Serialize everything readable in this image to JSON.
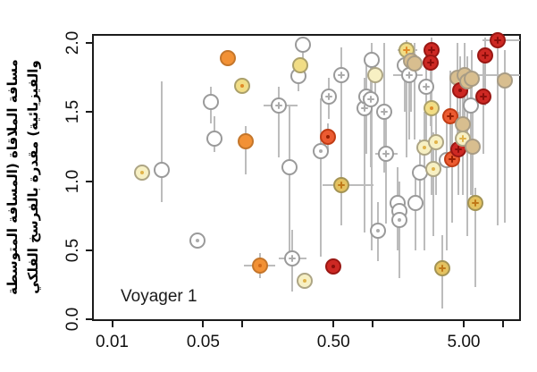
{
  "figure": {
    "annotation": "Voyager 1"
  },
  "chart_data": {
    "type": "scatter",
    "x_scale": "log",
    "title": "",
    "xlabel": "",
    "ylabel_line1": "مسافة الملاقاة (المسافة المتوسطة",
    "ylabel_line2": "والفيزيائية) مقدرة بالفرسخ الفلكي",
    "annotation": "Voyager 1",
    "grid": false,
    "legend": "none",
    "xlim": [
      0.007,
      13.7
    ],
    "ylim": [
      -0.02,
      2.08
    ],
    "x_ticks": [
      {
        "v": 0.01,
        "label": "0.01"
      },
      {
        "v": 0.05,
        "label": "0.05"
      },
      {
        "v": 0.1,
        "label": ""
      },
      {
        "v": 0.5,
        "label": "0.50"
      },
      {
        "v": 1.0,
        "label": ""
      },
      {
        "v": 5.0,
        "label": "5.00"
      },
      {
        "v": 10.0,
        "label": ""
      }
    ],
    "y_ticks": [
      {
        "v": 0.0,
        "label": "0.0"
      },
      {
        "v": 0.5,
        "label": "0.5"
      },
      {
        "v": 1.0,
        "label": "1.0"
      },
      {
        "v": 1.5,
        "label": "1.5"
      },
      {
        "v": 2.0,
        "label": "2.0"
      }
    ],
    "color_categories": {
      "open": {
        "fill": "#ffffff",
        "stroke": "#9a9a9a",
        "mark": "#ababab"
      },
      "pale": {
        "fill": "#f7f0c3",
        "stroke": "#ada584",
        "mark": "#e0b34a"
      },
      "yellow": {
        "fill": "#f1dd85",
        "stroke": "#aba06a",
        "mark": "#e08a28"
      },
      "gold": {
        "fill": "#e4c260",
        "stroke": "#a39354",
        "mark": "#c07818"
      },
      "tan": {
        "fill": "#d8be8f",
        "stroke": "#a89c85",
        "mark": "#b89858"
      },
      "orange": {
        "fill": "#f29135",
        "stroke": "#c4762b",
        "mark": "#d06818"
      },
      "redorange": {
        "fill": "#ec5b31",
        "stroke": "#c03c14",
        "mark": "#951e00"
      },
      "red": {
        "fill": "#cd2823",
        "stroke": "#991713",
        "mark": "#8b0e0b"
      }
    },
    "error_bar_color": "#bcbcbc",
    "points": [
      {
        "x": 0.017,
        "y": 1.06,
        "c": "pale",
        "m": "dot"
      },
      {
        "x": 0.024,
        "y": 1.08,
        "c": "open",
        "el": 0.85,
        "eh": 1.72
      },
      {
        "x": 0.045,
        "y": 0.57,
        "c": "open",
        "m": "dot"
      },
      {
        "x": 0.057,
        "y": 1.57,
        "c": "open",
        "el": 1.42,
        "eh": 1.68
      },
      {
        "x": 0.061,
        "y": 1.31,
        "c": "open",
        "el": 1.21,
        "eh": 1.47
      },
      {
        "x": 0.077,
        "y": 1.89,
        "c": "orange"
      },
      {
        "x": 0.1,
        "y": 1.69,
        "c": "yellow",
        "m": "dot"
      },
      {
        "x": 0.106,
        "y": 1.29,
        "c": "orange",
        "el": 1.05,
        "eh": 1.4
      },
      {
        "x": 0.137,
        "y": 0.39,
        "c": "orange",
        "m": "dot",
        "el": 0.3,
        "eh": 0.48,
        "xl": 0.103,
        "xh": 0.178
      },
      {
        "x": 0.19,
        "y": 1.55,
        "c": "open",
        "m": "plus",
        "el": 1.17,
        "eh": 1.68,
        "xl": 0.146,
        "xh": 0.266
      },
      {
        "x": 0.23,
        "y": 1.1,
        "c": "open",
        "el": 0.45,
        "eh": 1.55
      },
      {
        "x": 0.24,
        "y": 0.44,
        "c": "open",
        "m": "plus",
        "el": 0.2,
        "eh": 0.65,
        "xl": 0.19,
        "xh": 0.31
      },
      {
        "x": 0.27,
        "y": 1.76,
        "c": "open",
        "el": 1.65,
        "eh": 1.88
      },
      {
        "x": 0.28,
        "y": 1.84,
        "c": "yellow"
      },
      {
        "x": 0.29,
        "y": 1.99,
        "c": "open",
        "el": 1.75,
        "eh": 2.02
      },
      {
        "x": 0.3,
        "y": 0.28,
        "c": "pale",
        "m": "dot"
      },
      {
        "x": 0.4,
        "y": 1.22,
        "c": "open",
        "m": "dot",
        "el": 0.45,
        "eh": 1.6
      },
      {
        "x": 0.45,
        "y": 1.32,
        "c": "redorange",
        "m": "dot",
        "el": 1.21,
        "eh": 1.42
      },
      {
        "x": 0.46,
        "y": 1.61,
        "c": "open",
        "m": "plus",
        "el": 1.45,
        "eh": 1.75
      },
      {
        "x": 0.5,
        "y": 0.38,
        "c": "red",
        "m": "dot"
      },
      {
        "x": 0.575,
        "y": 1.77,
        "c": "open",
        "m": "plus",
        "el": 0.95,
        "eh": 1.97
      },
      {
        "x": 0.575,
        "y": 0.97,
        "c": "gold",
        "m": "plus",
        "el": 0.68,
        "eh": 1.09,
        "xl": 0.41,
        "xh": 1.02
      },
      {
        "x": 0.86,
        "y": 1.53,
        "c": "open",
        "m": "plus",
        "el": 0.63,
        "eh": 1.75
      },
      {
        "x": 0.89,
        "y": 1.61,
        "c": "open",
        "m": "plus",
        "el": 1.2,
        "eh": 1.9
      },
      {
        "x": 0.97,
        "y": 1.59,
        "c": "open",
        "m": "plus",
        "el": 1.1,
        "eh": 1.85
      },
      {
        "x": 0.99,
        "y": 1.88,
        "c": "open",
        "el": 0.5,
        "eh": 2.0
      },
      {
        "x": 1.05,
        "y": 1.77,
        "c": "pale",
        "el": 1.55,
        "eh": 1.85
      },
      {
        "x": 1.1,
        "y": 0.64,
        "c": "open",
        "m": "dot",
        "el": 0.42,
        "eh": 0.85
      },
      {
        "x": 1.27,
        "y": 1.2,
        "c": "open",
        "m": "plus",
        "el": 0.69,
        "eh": 1.51,
        "xl": 1.05,
        "xh": 1.55
      },
      {
        "x": 1.22,
        "y": 1.5,
        "c": "open",
        "m": "plus",
        "el": 1.06,
        "eh": 2.0
      },
      {
        "x": 1.55,
        "y": 0.84,
        "c": "open",
        "el": 0.5,
        "eh": 1.1
      },
      {
        "x": 1.6,
        "y": 0.78,
        "c": "open",
        "el": 0.3,
        "eh": 1.0
      },
      {
        "x": 1.6,
        "y": 0.72,
        "c": "open",
        "m": "dot",
        "el": 0.4,
        "eh": 0.95
      },
      {
        "x": 1.77,
        "y": 1.84,
        "c": "open",
        "el": 1.5,
        "eh": 2.0
      },
      {
        "x": 1.82,
        "y": 1.95,
        "c": "yellow",
        "m": "plus",
        "el": 1.17,
        "eh": 2.02,
        "xl": 1.56,
        "xh": 2.2
      },
      {
        "x": 1.97,
        "y": 1.87,
        "c": "tan",
        "el": 1.5,
        "eh": 2.0
      },
      {
        "x": 1.9,
        "y": 1.77,
        "c": "open",
        "m": "plus",
        "el": 1.3,
        "eh": 2.0,
        "xl": 1.44,
        "xh": 2.4
      },
      {
        "x": 2.09,
        "y": 1.85,
        "c": "tan",
        "el": 1.3,
        "eh": 2.0
      },
      {
        "x": 2.13,
        "y": 0.84,
        "c": "open",
        "el": 0.5,
        "eh": 1.1
      },
      {
        "x": 2.32,
        "y": 1.06,
        "c": "open",
        "el": 0.8,
        "eh": 1.3
      },
      {
        "x": 2.49,
        "y": 1.24,
        "c": "pale",
        "m": "dot",
        "el": 0.5,
        "eh": 1.5
      },
      {
        "x": 2.57,
        "y": 1.68,
        "c": "open",
        "m": "plus",
        "el": 1.2,
        "eh": 1.95
      },
      {
        "x": 2.83,
        "y": 1.95,
        "c": "red",
        "m": "plus",
        "el": 1.6,
        "eh": 2.04
      },
      {
        "x": 2.79,
        "y": 1.86,
        "c": "red",
        "m": "plus",
        "el": 1.4,
        "eh": 2.0
      },
      {
        "x": 2.83,
        "y": 1.53,
        "c": "yellow",
        "m": "dot",
        "el": 0.9,
        "eh": 1.8
      },
      {
        "x": 2.92,
        "y": 1.09,
        "c": "pale",
        "m": "dot",
        "el": 0.6,
        "eh": 1.35
      },
      {
        "x": 3.05,
        "y": 1.28,
        "c": "pale",
        "m": "dot",
        "el": 0.9,
        "eh": 1.5
      },
      {
        "x": 3.41,
        "y": 0.37,
        "c": "gold",
        "m": "plus",
        "el": 0.08,
        "eh": 0.61
      },
      {
        "x": 3.69,
        "y": 1.15,
        "c": "open",
        "el": 0.5,
        "eh": 1.5
      },
      {
        "x": 3.94,
        "y": 1.47,
        "c": "redorange",
        "m": "plus",
        "el": 1.1,
        "eh": 1.8
      },
      {
        "x": 4.06,
        "y": 1.16,
        "c": "redorange",
        "m": "plus",
        "el": 0.7,
        "eh": 1.5
      },
      {
        "x": 4.49,
        "y": 1.75,
        "c": "tan",
        "el": 1.2,
        "eh": 2.0
      },
      {
        "x": 4.55,
        "y": 1.23,
        "c": "red",
        "m": "plus",
        "el": 0.9,
        "eh": 1.5
      },
      {
        "x": 4.69,
        "y": 1.66,
        "c": "red",
        "m": "dot",
        "el": 1.3,
        "eh": 1.9
      },
      {
        "x": 4.91,
        "y": 1.41,
        "c": "tan",
        "el": 1.0,
        "eh": 1.7
      },
      {
        "x": 4.91,
        "y": 1.31,
        "c": "pale",
        "m": "plus",
        "el": 0.9,
        "eh": 1.6
      },
      {
        "x": 5.08,
        "y": 1.77,
        "c": "tan",
        "el": 1.4,
        "eh": 2.0,
        "xl": 4.2,
        "xh": 13.5
      },
      {
        "x": 5.34,
        "y": 1.72,
        "c": "tan",
        "el": 0.6,
        "eh": 1.9
      },
      {
        "x": 5.63,
        "y": 1.55,
        "c": "open",
        "el": 0.9,
        "eh": 1.8
      },
      {
        "x": 5.8,
        "y": 1.74,
        "c": "tan",
        "el": 1.3,
        "eh": 1.95
      },
      {
        "x": 5.87,
        "y": 1.25,
        "c": "tan",
        "el": 0.85,
        "eh": 1.5
      },
      {
        "x": 6.1,
        "y": 0.84,
        "c": "gold",
        "m": "plus",
        "el": 0.23,
        "eh": 0.95
      },
      {
        "x": 7.13,
        "y": 1.61,
        "c": "red",
        "m": "plus",
        "el": 1.2,
        "eh": 1.9
      },
      {
        "x": 7.36,
        "y": 1.91,
        "c": "red",
        "m": "plus",
        "el": 1.55,
        "eh": 2.04
      },
      {
        "x": 9.1,
        "y": 2.02,
        "c": "red",
        "m": "plus",
        "el": 0.68,
        "eh": 2.05,
        "xl": 7.0,
        "xh": 13.5
      },
      {
        "x": 10.4,
        "y": 1.73,
        "c": "tan",
        "el": 0.7,
        "eh": 1.95
      }
    ]
  }
}
